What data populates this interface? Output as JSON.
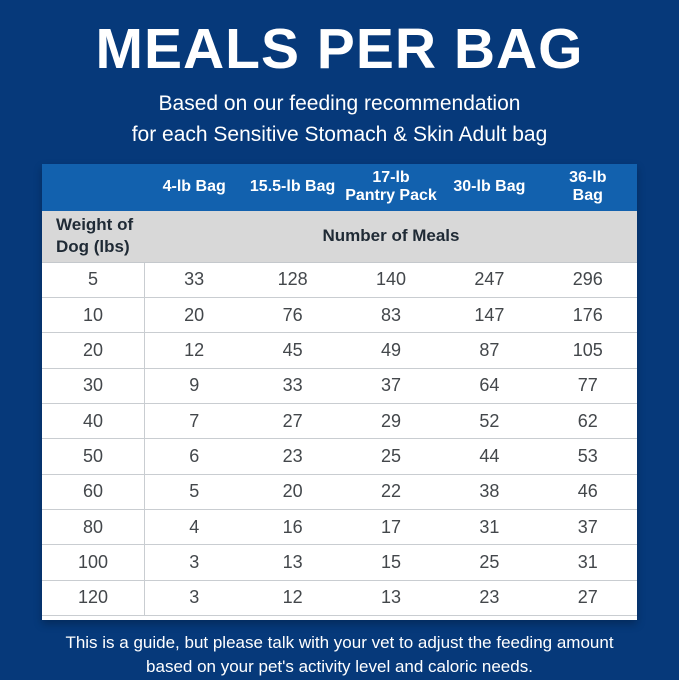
{
  "page": {
    "title": "MEALS PER BAG",
    "subtitle_line1": "Based on our feeding recommendation",
    "subtitle_line2": "for each Sensitive Stomach & Skin Adult bag",
    "footer_line1": "This is a guide, but please talk with your vet to adjust the feeding amount",
    "footer_line2": "based on your pet's activity level and caloric needs."
  },
  "colors": {
    "background_navy": "#06397a",
    "header_blue": "#1261ae",
    "subheader_gray": "#d8d8d8",
    "row_divider": "#c9cdd1",
    "cell_text": "#43474b",
    "white": "#ffffff"
  },
  "chart_data": {
    "type": "table",
    "title": "MEALS PER BAG",
    "subtitle": "Based on our feeding recommendation for each Sensitive Stomach & Skin Adult bag",
    "row_header_label": "Weight of\nDog (lbs)",
    "span_header_label": "Number of Meals",
    "columns": {
      "0": "4-lb Bag",
      "1": "15.5-lb Bag",
      "2": "17-lb\nPantry Pack",
      "3": "30-lb Bag",
      "4": "36-lb\nBag"
    },
    "column_labels": [
      "4-lb Bag",
      "15.5-lb Bag",
      "17-lb Pantry Pack",
      "30-lb Bag",
      "36-lb Bag"
    ],
    "rows": [
      {
        "weight": "5",
        "meals": [
          "33",
          "128",
          "140",
          "247",
          "296"
        ]
      },
      {
        "weight": "10",
        "meals": [
          "20",
          "76",
          "83",
          "147",
          "176"
        ]
      },
      {
        "weight": "20",
        "meals": [
          "12",
          "45",
          "49",
          "87",
          "105"
        ]
      },
      {
        "weight": "30",
        "meals": [
          "9",
          "33",
          "37",
          "64",
          "77"
        ]
      },
      {
        "weight": "40",
        "meals": [
          "7",
          "27",
          "29",
          "52",
          "62"
        ]
      },
      {
        "weight": "50",
        "meals": [
          "6",
          "23",
          "25",
          "44",
          "53"
        ]
      },
      {
        "weight": "60",
        "meals": [
          "5",
          "20",
          "22",
          "38",
          "46"
        ]
      },
      {
        "weight": "80",
        "meals": [
          "4",
          "16",
          "17",
          "31",
          "37"
        ]
      },
      {
        "weight": "100",
        "meals": [
          "3",
          "13",
          "15",
          "25",
          "31"
        ]
      },
      {
        "weight": "120",
        "meals": [
          "3",
          "12",
          "13",
          "23",
          "27"
        ]
      }
    ],
    "footnote": "This is a guide, but please talk with your vet to adjust the feeding amount based on your pet's activity level and caloric needs."
  }
}
